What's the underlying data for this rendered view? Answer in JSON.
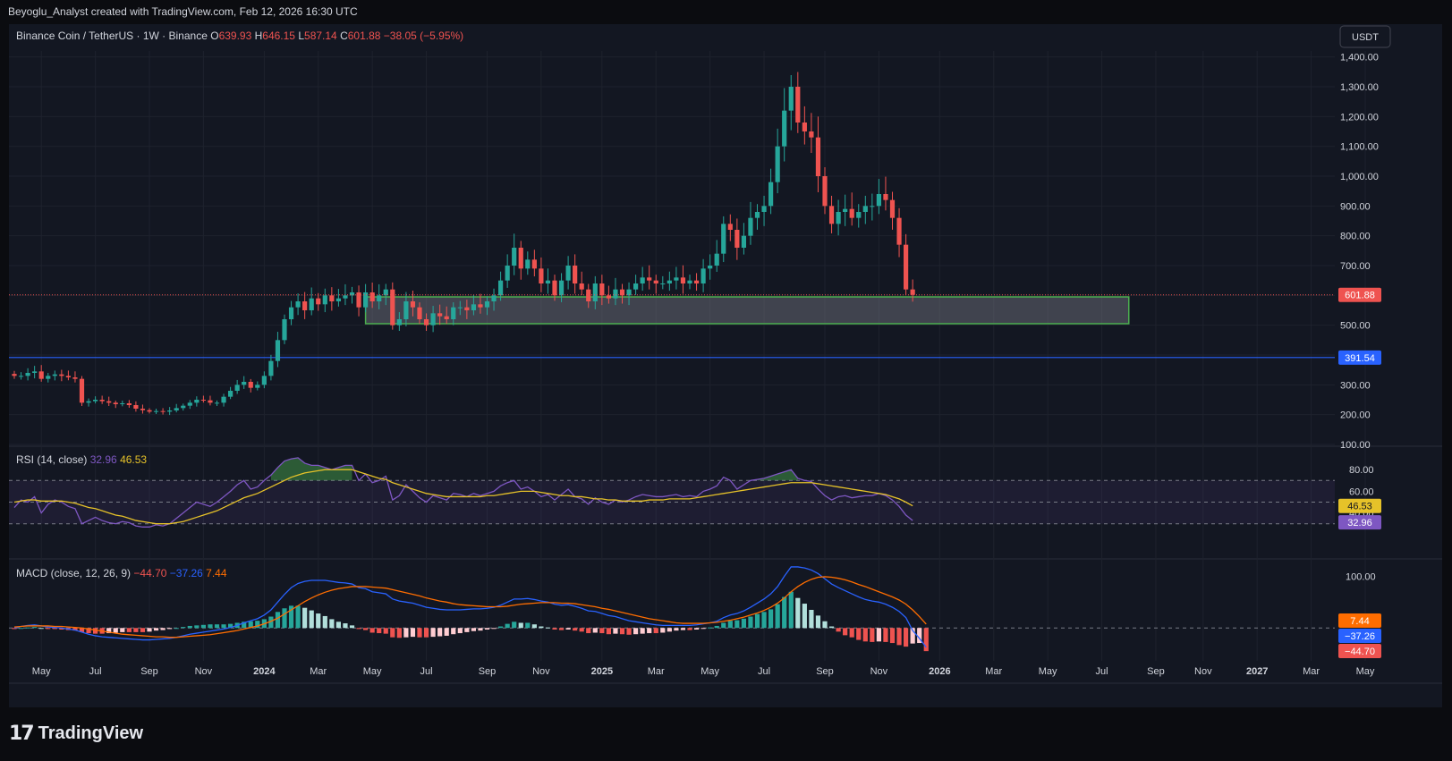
{
  "header": {
    "caption": "Beyoglu_Analyst created with TradingView.com, Feb 12, 2026 16:30 UTC"
  },
  "footer": {
    "brand": "TradingView",
    "logo_icon": "tradingview-logo-icon"
  },
  "symbol": {
    "name": "Binance Coin / TetherUS · 1W · Binance",
    "o_label": "O",
    "o": "639.93",
    "h_label": "H",
    "h": "646.15",
    "l_label": "L",
    "l": "587.14",
    "c_label": "C",
    "c": "601.88",
    "change": "−38.05 (−5.95%)"
  },
  "currency_button": "USDT",
  "colors": {
    "bg": "#131722",
    "up": "#26a69a",
    "down": "#ef5350",
    "grid": "#1e222d",
    "text": "#d1d4dc",
    "rsi": "#7e57c2",
    "rsi_ma": "#e6c229",
    "macd": "#2962ff",
    "signal": "#ff6d00",
    "zone": "#4caf50"
  },
  "chart_data": [
    {
      "type": "candlestick",
      "title": "Binance Coin / TetherUS · 1W · Binance",
      "ylim": [
        100,
        1420
      ],
      "y_ticks": [
        "100.00",
        "200.00",
        "300.00",
        "400.00",
        "500.00",
        "600.00",
        "700.00",
        "800.00",
        "900.00",
        "1,000.00",
        "1,100.00",
        "1,200.00",
        "1,300.00",
        "1,400.00"
      ],
      "x_ticks": [
        "May",
        "Jul",
        "Sep",
        "Nov",
        "2024",
        "Mar",
        "May",
        "Jul",
        "Sep",
        "Nov",
        "2025",
        "Mar",
        "May",
        "Jul",
        "Sep",
        "Nov",
        "2026",
        "Mar",
        "May",
        "Jul",
        "Sep",
        "Nov",
        "2027",
        "Mar",
        "May"
      ],
      "closes": [
        330,
        330,
        340,
        345,
        320,
        330,
        335,
        330,
        325,
        320,
        240,
        245,
        250,
        245,
        240,
        235,
        238,
        232,
        220,
        215,
        210,
        212,
        210,
        214,
        222,
        230,
        240,
        250,
        248,
        240,
        240,
        260,
        280,
        300,
        310,
        290,
        300,
        330,
        380,
        450,
        520,
        560,
        580,
        550,
        590,
        570,
        600,
        580,
        590,
        600,
        610,
        560,
        610,
        580,
        600,
        620,
        500,
        520,
        580,
        560,
        520,
        500,
        540,
        530,
        520,
        560,
        560,
        550,
        570,
        560,
        580,
        600,
        650,
        700,
        760,
        690,
        720,
        690,
        640,
        650,
        600,
        650,
        700,
        640,
        620,
        580,
        640,
        600,
        590,
        620,
        600,
        620,
        640,
        660,
        650,
        640,
        640,
        650,
        660,
        640,
        650,
        640,
        690,
        700,
        740,
        840,
        820,
        760,
        800,
        860,
        880,
        900,
        980,
        1100,
        1220,
        1300,
        1180,
        1150,
        1130,
        1000,
        900,
        840,
        880,
        890,
        860,
        880,
        900,
        900,
        940,
        920,
        860,
        770,
        620,
        601.88
      ],
      "last_price_label": "601.88",
      "horizontal_line": 391.54,
      "horizontal_line_label": "391.54",
      "zone": {
        "low": 505,
        "high": 595,
        "from_week": 52,
        "to_week": 165
      }
    },
    {
      "type": "line",
      "title": "RSI (14, close)",
      "values_label": [
        "32.96",
        "46.53"
      ],
      "ylim": [
        0,
        100
      ],
      "y_ticks": [
        "40.00",
        "60.00",
        "80.00"
      ],
      "levels": [
        30,
        50,
        70
      ],
      "series": [
        {
          "name": "32.96",
          "color": "#7e57c2",
          "last_label": "32.96",
          "values": [
            45,
            52,
            50,
            55,
            40,
            48,
            52,
            50,
            46,
            44,
            30,
            33,
            36,
            33,
            31,
            30,
            32,
            31,
            28,
            27,
            27,
            29,
            28,
            30,
            35,
            40,
            45,
            50,
            48,
            46,
            50,
            55,
            60,
            66,
            70,
            62,
            64,
            70,
            75,
            82,
            88,
            90,
            91,
            86,
            84,
            84,
            82,
            80,
            82,
            84,
            84,
            70,
            76,
            68,
            70,
            74,
            52,
            56,
            66,
            60,
            54,
            50,
            56,
            54,
            52,
            58,
            57,
            55,
            58,
            56,
            58,
            60,
            65,
            68,
            70,
            62,
            64,
            60,
            55,
            57,
            52,
            57,
            62,
            55,
            53,
            48,
            54,
            50,
            48,
            52,
            50,
            52,
            55,
            57,
            56,
            55,
            55,
            56,
            57,
            55,
            56,
            55,
            60,
            62,
            65,
            73,
            70,
            62,
            66,
            70,
            71,
            72,
            74,
            76,
            78,
            80,
            72,
            70,
            69,
            62,
            56,
            52,
            55,
            56,
            54,
            55,
            56,
            56,
            58,
            56,
            52,
            46,
            38,
            32.96
          ]
        },
        {
          "name": "46.53",
          "color": "#e6c229",
          "last_label": "46.53",
          "values": [
            50,
            51,
            52,
            52,
            51,
            51,
            51,
            51,
            50,
            49,
            47,
            45,
            44,
            42,
            40,
            38,
            37,
            35,
            33,
            32,
            31,
            30,
            30,
            30,
            31,
            32,
            34,
            36,
            38,
            40,
            42,
            45,
            48,
            51,
            54,
            56,
            58,
            61,
            64,
            67,
            70,
            73,
            75,
            77,
            78,
            79,
            80,
            80,
            80,
            80,
            80,
            78,
            76,
            74,
            72,
            71,
            68,
            66,
            64,
            62,
            60,
            58,
            57,
            56,
            55,
            55,
            55,
            55,
            55,
            55,
            56,
            56,
            57,
            58,
            59,
            60,
            60,
            60,
            59,
            58,
            57,
            56,
            56,
            55,
            55,
            54,
            53,
            53,
            52,
            52,
            51,
            51,
            51,
            51,
            52,
            52,
            52,
            53,
            53,
            53,
            53,
            54,
            55,
            56,
            57,
            58,
            59,
            60,
            61,
            62,
            63,
            64,
            65,
            66,
            67,
            68,
            68,
            68,
            68,
            67,
            66,
            65,
            64,
            63,
            62,
            61,
            60,
            59,
            58,
            57,
            55,
            53,
            50,
            46.53
          ]
        }
      ]
    },
    {
      "type": "bar",
      "title": "MACD (close, 12, 26, 9)",
      "values_label": [
        "−44.70",
        "−37.26",
        "7.44"
      ],
      "y_ticks": [
        "100.00"
      ],
      "macd_last_label": "−37.26",
      "signal_last_label": "7.44",
      "histogram_last_label": "−44.70",
      "series": [
        {
          "name": "MACD",
          "color": "#2962ff",
          "values": [
            0,
            3,
            5,
            6,
            4,
            2,
            1,
            0,
            -2,
            -4,
            -8,
            -12,
            -15,
            -17,
            -18,
            -19,
            -20,
            -21,
            -22,
            -23,
            -23,
            -22,
            -21,
            -20,
            -18,
            -15,
            -12,
            -10,
            -8,
            -6,
            -4,
            -2,
            1,
            5,
            10,
            14,
            18,
            25,
            35,
            50,
            65,
            78,
            86,
            90,
            92,
            92,
            92,
            90,
            88,
            87,
            85,
            78,
            76,
            70,
            68,
            66,
            56,
            52,
            50,
            48,
            44,
            40,
            38,
            36,
            35,
            35,
            35,
            36,
            37,
            37,
            38,
            40,
            44,
            50,
            56,
            56,
            57,
            55,
            52,
            50,
            46,
            44,
            45,
            42,
            38,
            33,
            32,
            28,
            24,
            22,
            18,
            14,
            12,
            10,
            8,
            6,
            5,
            5,
            5,
            5,
            5,
            6,
            8,
            10,
            13,
            20,
            25,
            28,
            33,
            40,
            48,
            56,
            66,
            80,
            100,
            118,
            118,
            116,
            112,
            105,
            95,
            85,
            78,
            72,
            66,
            60,
            55,
            52,
            50,
            46,
            40,
            32,
            20,
            -5,
            -20,
            -37.26
          ]
        },
        {
          "name": "Signal",
          "color": "#ff6d00",
          "values": [
            2,
            3,
            4,
            4,
            4,
            4,
            3,
            3,
            2,
            1,
            0,
            -2,
            -4,
            -6,
            -8,
            -10,
            -12,
            -13,
            -14,
            -15,
            -16,
            -17,
            -17,
            -18,
            -18,
            -17,
            -16,
            -15,
            -14,
            -13,
            -11,
            -9,
            -7,
            -5,
            -2,
            1,
            4,
            8,
            13,
            19,
            27,
            35,
            43,
            51,
            58,
            64,
            69,
            73,
            76,
            78,
            80,
            80,
            80,
            79,
            78,
            77,
            74,
            71,
            68,
            65,
            62,
            58,
            55,
            52,
            50,
            47,
            45,
            44,
            43,
            42,
            41,
            41,
            41,
            42,
            44,
            46,
            47,
            48,
            49,
            49,
            49,
            48,
            48,
            47,
            45,
            43,
            41,
            38,
            36,
            33,
            30,
            27,
            24,
            21,
            18,
            16,
            14,
            12,
            10,
            9,
            9,
            9,
            9,
            10,
            11,
            13,
            15,
            18,
            21,
            25,
            29,
            34,
            40,
            48,
            58,
            70,
            80,
            88,
            94,
            98,
            99,
            98,
            96,
            93,
            89,
            84,
            80,
            75,
            70,
            65,
            60,
            54,
            46,
            35,
            22,
            7.44
          ]
        },
        {
          "name": "Histogram",
          "colors": [
            "#26a69a",
            "#b2dfdb",
            "#ef5350",
            "#ffcdd2"
          ],
          "values": [
            -2,
            0,
            1,
            2,
            0,
            -2,
            -2,
            -3,
            -4,
            -5,
            -8,
            -10,
            -11,
            -11,
            -10,
            -9,
            -8,
            -8,
            -8,
            -8,
            -7,
            -5,
            -4,
            -2,
            0,
            2,
            4,
            5,
            6,
            7,
            7,
            7,
            8,
            10,
            12,
            13,
            14,
            17,
            22,
            31,
            38,
            43,
            43,
            39,
            34,
            28,
            23,
            17,
            12,
            9,
            5,
            -2,
            -4,
            -9,
            -10,
            -11,
            -18,
            -19,
            -18,
            -17,
            -18,
            -18,
            -17,
            -16,
            -15,
            -12,
            -10,
            -8,
            -6,
            -5,
            -3,
            -1,
            3,
            8,
            12,
            10,
            10,
            7,
            3,
            1,
            -3,
            -4,
            -3,
            -5,
            -7,
            -10,
            -9,
            -10,
            -12,
            -11,
            -12,
            -13,
            -12,
            -11,
            -10,
            -10,
            -9,
            -7,
            -5,
            -4,
            -4,
            -3,
            -1,
            1,
            4,
            10,
            14,
            15,
            18,
            22,
            27,
            31,
            36,
            46,
            60,
            70,
            58,
            47,
            35,
            24,
            13,
            3,
            -7,
            -14,
            -18,
            -23,
            -26,
            -27,
            -26,
            -27,
            -29,
            -33,
            -36,
            -30,
            -29,
            -44.7
          ]
        }
      ]
    }
  ]
}
